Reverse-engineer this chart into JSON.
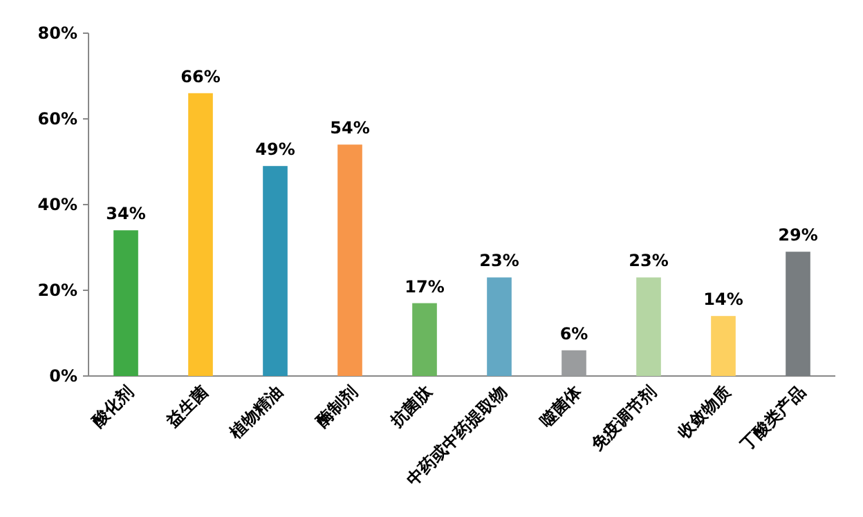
{
  "chart_data": {
    "type": "bar",
    "categories": [
      "酸化剂",
      "益生菌",
      "植物精油",
      "酶制剂",
      "抗菌肽",
      "中药或中药提取物",
      "噬菌体",
      "免疫调节剂",
      "收敛物质",
      "丁酸类产品"
    ],
    "values": [
      34,
      66,
      49,
      54,
      17,
      23,
      6,
      23,
      14,
      29
    ],
    "value_labels": [
      "34%",
      "66%",
      "49%",
      "54%",
      "17%",
      "23%",
      "6%",
      "23%",
      "14%",
      "29%"
    ],
    "colors": [
      "#3faa45",
      "#fdc02a",
      "#2e95b5",
      "#f7964a",
      "#6bb65f",
      "#63a8c4",
      "#9a9c9e",
      "#b5d6a3",
      "#fdd060",
      "#787d80"
    ],
    "ylim": [
      0,
      80
    ],
    "yticks": [
      {
        "value": 0,
        "label": "0%"
      },
      {
        "value": 20,
        "label": "20%"
      },
      {
        "value": 40,
        "label": "40%"
      },
      {
        "value": 60,
        "label": "60%"
      },
      {
        "value": 80,
        "label": "80%"
      }
    ]
  }
}
